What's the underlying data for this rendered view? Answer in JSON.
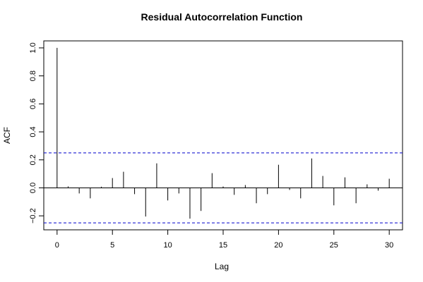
{
  "chart_data": {
    "type": "bar",
    "title": "Residual Autocorrelation Function",
    "xlabel": "Lag",
    "ylabel": "ACF",
    "xlim": [
      -1.2,
      31.2
    ],
    "ylim": [
      -0.3,
      1.05
    ],
    "x_ticks": [
      0,
      5,
      10,
      15,
      20,
      25,
      30
    ],
    "y_ticks": [
      -0.2,
      0.0,
      0.2,
      0.4,
      0.6,
      0.8,
      1.0
    ],
    "x_tick_labels": [
      "0",
      "5",
      "10",
      "15",
      "20",
      "25",
      "30"
    ],
    "y_tick_labels": [
      "−0.2",
      "0.0",
      "0.2",
      "0.4",
      "0.6",
      "0.8",
      "1.0"
    ],
    "lags": [
      0,
      1,
      2,
      3,
      4,
      5,
      6,
      7,
      8,
      9,
      10,
      11,
      12,
      13,
      14,
      15,
      16,
      17,
      18,
      19,
      20,
      21,
      22,
      23,
      24,
      25,
      26,
      27,
      28,
      29,
      30
    ],
    "values": [
      1.0,
      0.01,
      -0.04,
      -0.075,
      0.008,
      0.07,
      0.115,
      -0.045,
      -0.205,
      0.175,
      -0.09,
      -0.04,
      -0.22,
      -0.165,
      0.105,
      0.01,
      -0.05,
      0.02,
      -0.11,
      -0.045,
      0.165,
      -0.015,
      -0.075,
      0.21,
      0.085,
      -0.125,
      0.075,
      -0.11,
      0.025,
      -0.02,
      0.065
    ],
    "confidence_bounds": [
      0.25,
      -0.25
    ],
    "colors": {
      "bars": "#000000",
      "confidence": "#0000cc",
      "zero_line": "#000000"
    },
    "grid": false
  }
}
